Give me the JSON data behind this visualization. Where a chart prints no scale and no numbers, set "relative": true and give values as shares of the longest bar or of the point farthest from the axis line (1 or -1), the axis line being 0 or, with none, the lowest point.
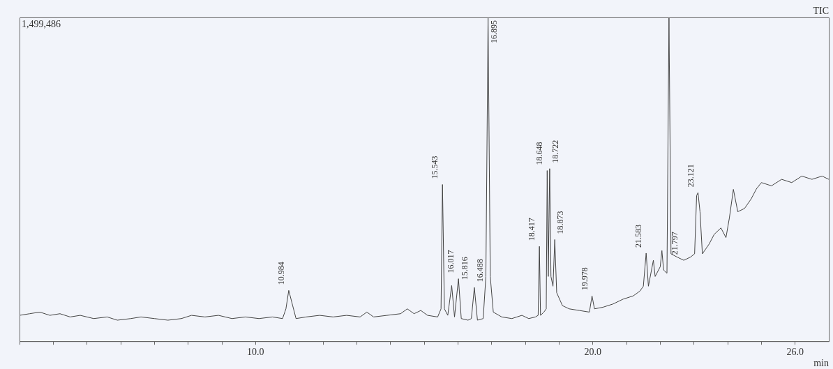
{
  "chart_data": {
    "type": "line",
    "relative": true,
    "xlabel": "min",
    "xlim": [
      3,
      27
    ],
    "xticks": [
      {
        "value": 3,
        "label": null
      },
      {
        "value": 4,
        "label": null
      },
      {
        "value": 5,
        "label": null
      },
      {
        "value": 6,
        "label": null
      },
      {
        "value": 7,
        "label": null
      },
      {
        "value": 8,
        "label": null
      },
      {
        "value": 9,
        "label": null
      },
      {
        "value": 10,
        "label": "10.0"
      },
      {
        "value": 11,
        "label": null
      },
      {
        "value": 12,
        "label": null
      },
      {
        "value": 13,
        "label": null
      },
      {
        "value": 14,
        "label": null
      },
      {
        "value": 15,
        "label": null
      },
      {
        "value": 16,
        "label": null
      },
      {
        "value": 17,
        "label": null
      },
      {
        "value": 18,
        "label": null
      },
      {
        "value": 19,
        "label": null
      },
      {
        "value": 20,
        "label": "20.0"
      },
      {
        "value": 21,
        "label": null
      },
      {
        "value": 22,
        "label": null
      },
      {
        "value": 23,
        "label": null
      },
      {
        "value": 24,
        "label": null
      },
      {
        "value": 25,
        "label": null
      },
      {
        "value": 26,
        "label": "26.0"
      }
    ],
    "tick_labels": "x",
    "legend": false,
    "marker": "none",
    "line_style": "solid",
    "x": [
      3.0,
      3.3,
      3.6,
      3.9,
      4.2,
      4.5,
      4.8,
      5.2,
      5.6,
      5.9,
      6.3,
      6.6,
      7.0,
      7.4,
      7.8,
      8.1,
      8.5,
      8.9,
      9.3,
      9.7,
      10.1,
      10.5,
      10.8,
      10.9,
      10.984,
      11.1,
      11.2,
      11.5,
      11.9,
      12.3,
      12.7,
      13.1,
      13.3,
      13.5,
      13.9,
      14.3,
      14.5,
      14.7,
      14.9,
      15.1,
      15.4,
      15.5,
      15.543,
      15.6,
      15.7,
      15.816,
      15.9,
      16.017,
      16.1,
      16.3,
      16.4,
      16.488,
      16.58,
      16.75,
      16.83,
      16.895,
      16.96,
      17.05,
      17.3,
      17.6,
      17.9,
      18.1,
      18.3,
      18.38,
      18.417,
      18.45,
      18.55,
      18.62,
      18.648,
      18.68,
      18.722,
      18.76,
      18.82,
      18.873,
      18.93,
      19.1,
      19.3,
      19.6,
      19.9,
      19.978,
      20.05,
      20.3,
      20.6,
      20.9,
      21.2,
      21.4,
      21.5,
      21.583,
      21.65,
      21.797,
      21.85,
      22.0,
      22.05,
      22.1,
      22.2,
      22.26,
      22.32,
      22.5,
      22.7,
      22.9,
      23.02,
      23.08,
      23.121,
      23.18,
      23.25,
      23.45,
      23.6,
      23.8,
      23.95,
      24.05,
      24.17,
      24.3,
      24.5,
      24.7,
      24.85,
      25.0,
      25.3,
      25.6,
      25.9,
      26.2,
      26.5,
      26.8,
      27.0
    ],
    "series": [
      {
        "color": "#444444",
        "values": [
          0.08,
          0.085,
          0.09,
          0.08,
          0.085,
          0.075,
          0.08,
          0.07,
          0.075,
          0.065,
          0.07,
          0.075,
          0.07,
          0.065,
          0.07,
          0.08,
          0.075,
          0.08,
          0.07,
          0.075,
          0.07,
          0.075,
          0.07,
          0.1,
          0.157,
          0.11,
          0.07,
          0.075,
          0.08,
          0.075,
          0.08,
          0.075,
          0.09,
          0.075,
          0.08,
          0.085,
          0.1,
          0.085,
          0.095,
          0.08,
          0.075,
          0.1,
          0.484,
          0.1,
          0.08,
          0.172,
          0.075,
          0.193,
          0.07,
          0.065,
          0.07,
          0.166,
          0.065,
          0.07,
          0.2,
          1,
          0.2,
          0.09,
          0.075,
          0.07,
          0.08,
          0.07,
          0.075,
          0.08,
          0.293,
          0.08,
          0.09,
          0.1,
          0.527,
          0.2,
          0.533,
          0.2,
          0.17,
          0.314,
          0.15,
          0.11,
          0.1,
          0.095,
          0.09,
          0.14,
          0.1,
          0.105,
          0.115,
          0.13,
          0.14,
          0.155,
          0.17,
          0.272,
          0.17,
          0.25,
          0.2,
          0.23,
          0.28,
          0.22,
          0.21,
          1,
          0.27,
          0.26,
          0.25,
          0.26,
          0.27,
          0.45,
          0.459,
          0.4,
          0.27,
          0.3,
          0.33,
          0.35,
          0.32,
          0.38,
          0.469,
          0.4,
          0.41,
          0.44,
          0.47,
          0.49,
          0.48,
          0.5,
          0.49,
          0.51,
          0.5,
          0.51,
          0.5
        ]
      }
    ],
    "annotations": [
      "1,499,486",
      "TIC",
      {
        "text": "10.984",
        "x": 10.984,
        "y": 0.157
      },
      {
        "text": "15.543",
        "x": 15.543,
        "y": 0.484
      },
      {
        "text": "15.816",
        "x": 15.816,
        "y": 0.172
      },
      {
        "text": "16.017",
        "x": 16.017,
        "y": 0.193
      },
      {
        "text": "16.488",
        "x": 16.488,
        "y": 0.166
      },
      {
        "text": "16.895",
        "x": 16.895,
        "y": 1
      },
      {
        "text": "18.417",
        "x": 18.417,
        "y": 0.293
      },
      {
        "text": "18.648",
        "x": 18.648,
        "y": 0.527
      },
      {
        "text": "18.722",
        "x": 18.722,
        "y": 0.533
      },
      {
        "text": "18.873",
        "x": 18.873,
        "y": 0.314
      },
      {
        "text": "19.978",
        "x": 19.978,
        "y": 0.14
      },
      {
        "text": "21.583",
        "x": 21.583,
        "y": 0.272
      },
      {
        "text": "21.797",
        "x": 21.797,
        "y": 0.25
      },
      {
        "text": "23.121",
        "x": 23.121,
        "y": 0.459
      }
    ]
  }
}
